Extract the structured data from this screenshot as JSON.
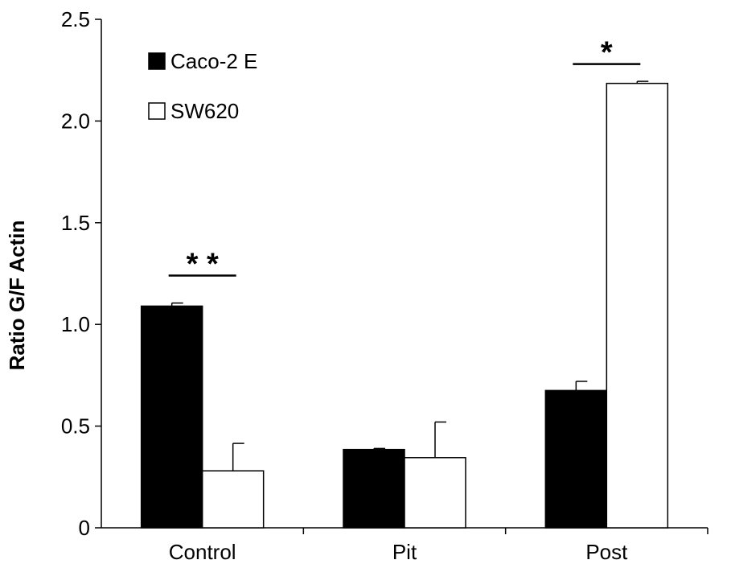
{
  "chart_data": {
    "type": "bar",
    "title": "",
    "xlabel": "",
    "ylabel": "Ratio G/F Actin",
    "ylim": [
      0,
      2.5
    ],
    "yticks": [
      0,
      0.5,
      1.0,
      1.5,
      2.0,
      2.5
    ],
    "ytick_labels": [
      "0",
      "0.5",
      "1.0",
      "1.5",
      "2.0",
      "2.5"
    ],
    "categories": [
      "Control",
      "Pit",
      "Post"
    ],
    "series": [
      {
        "name": "Caco-2 E",
        "color": "#000000",
        "values": [
          1.09,
          0.385,
          0.675
        ],
        "errors": [
          0.015,
          0.005,
          0.045
        ]
      },
      {
        "name": "SW620",
        "color": "#ffffff",
        "values": [
          0.28,
          0.345,
          2.185
        ],
        "errors": [
          0.135,
          0.175,
          0.01
        ]
      }
    ],
    "legend_position": "top-left",
    "grid": false,
    "annotations": [
      {
        "text": "* *",
        "category": "Control",
        "y": 1.24
      },
      {
        "text": "*",
        "category": "Post",
        "y": 2.28
      }
    ]
  }
}
